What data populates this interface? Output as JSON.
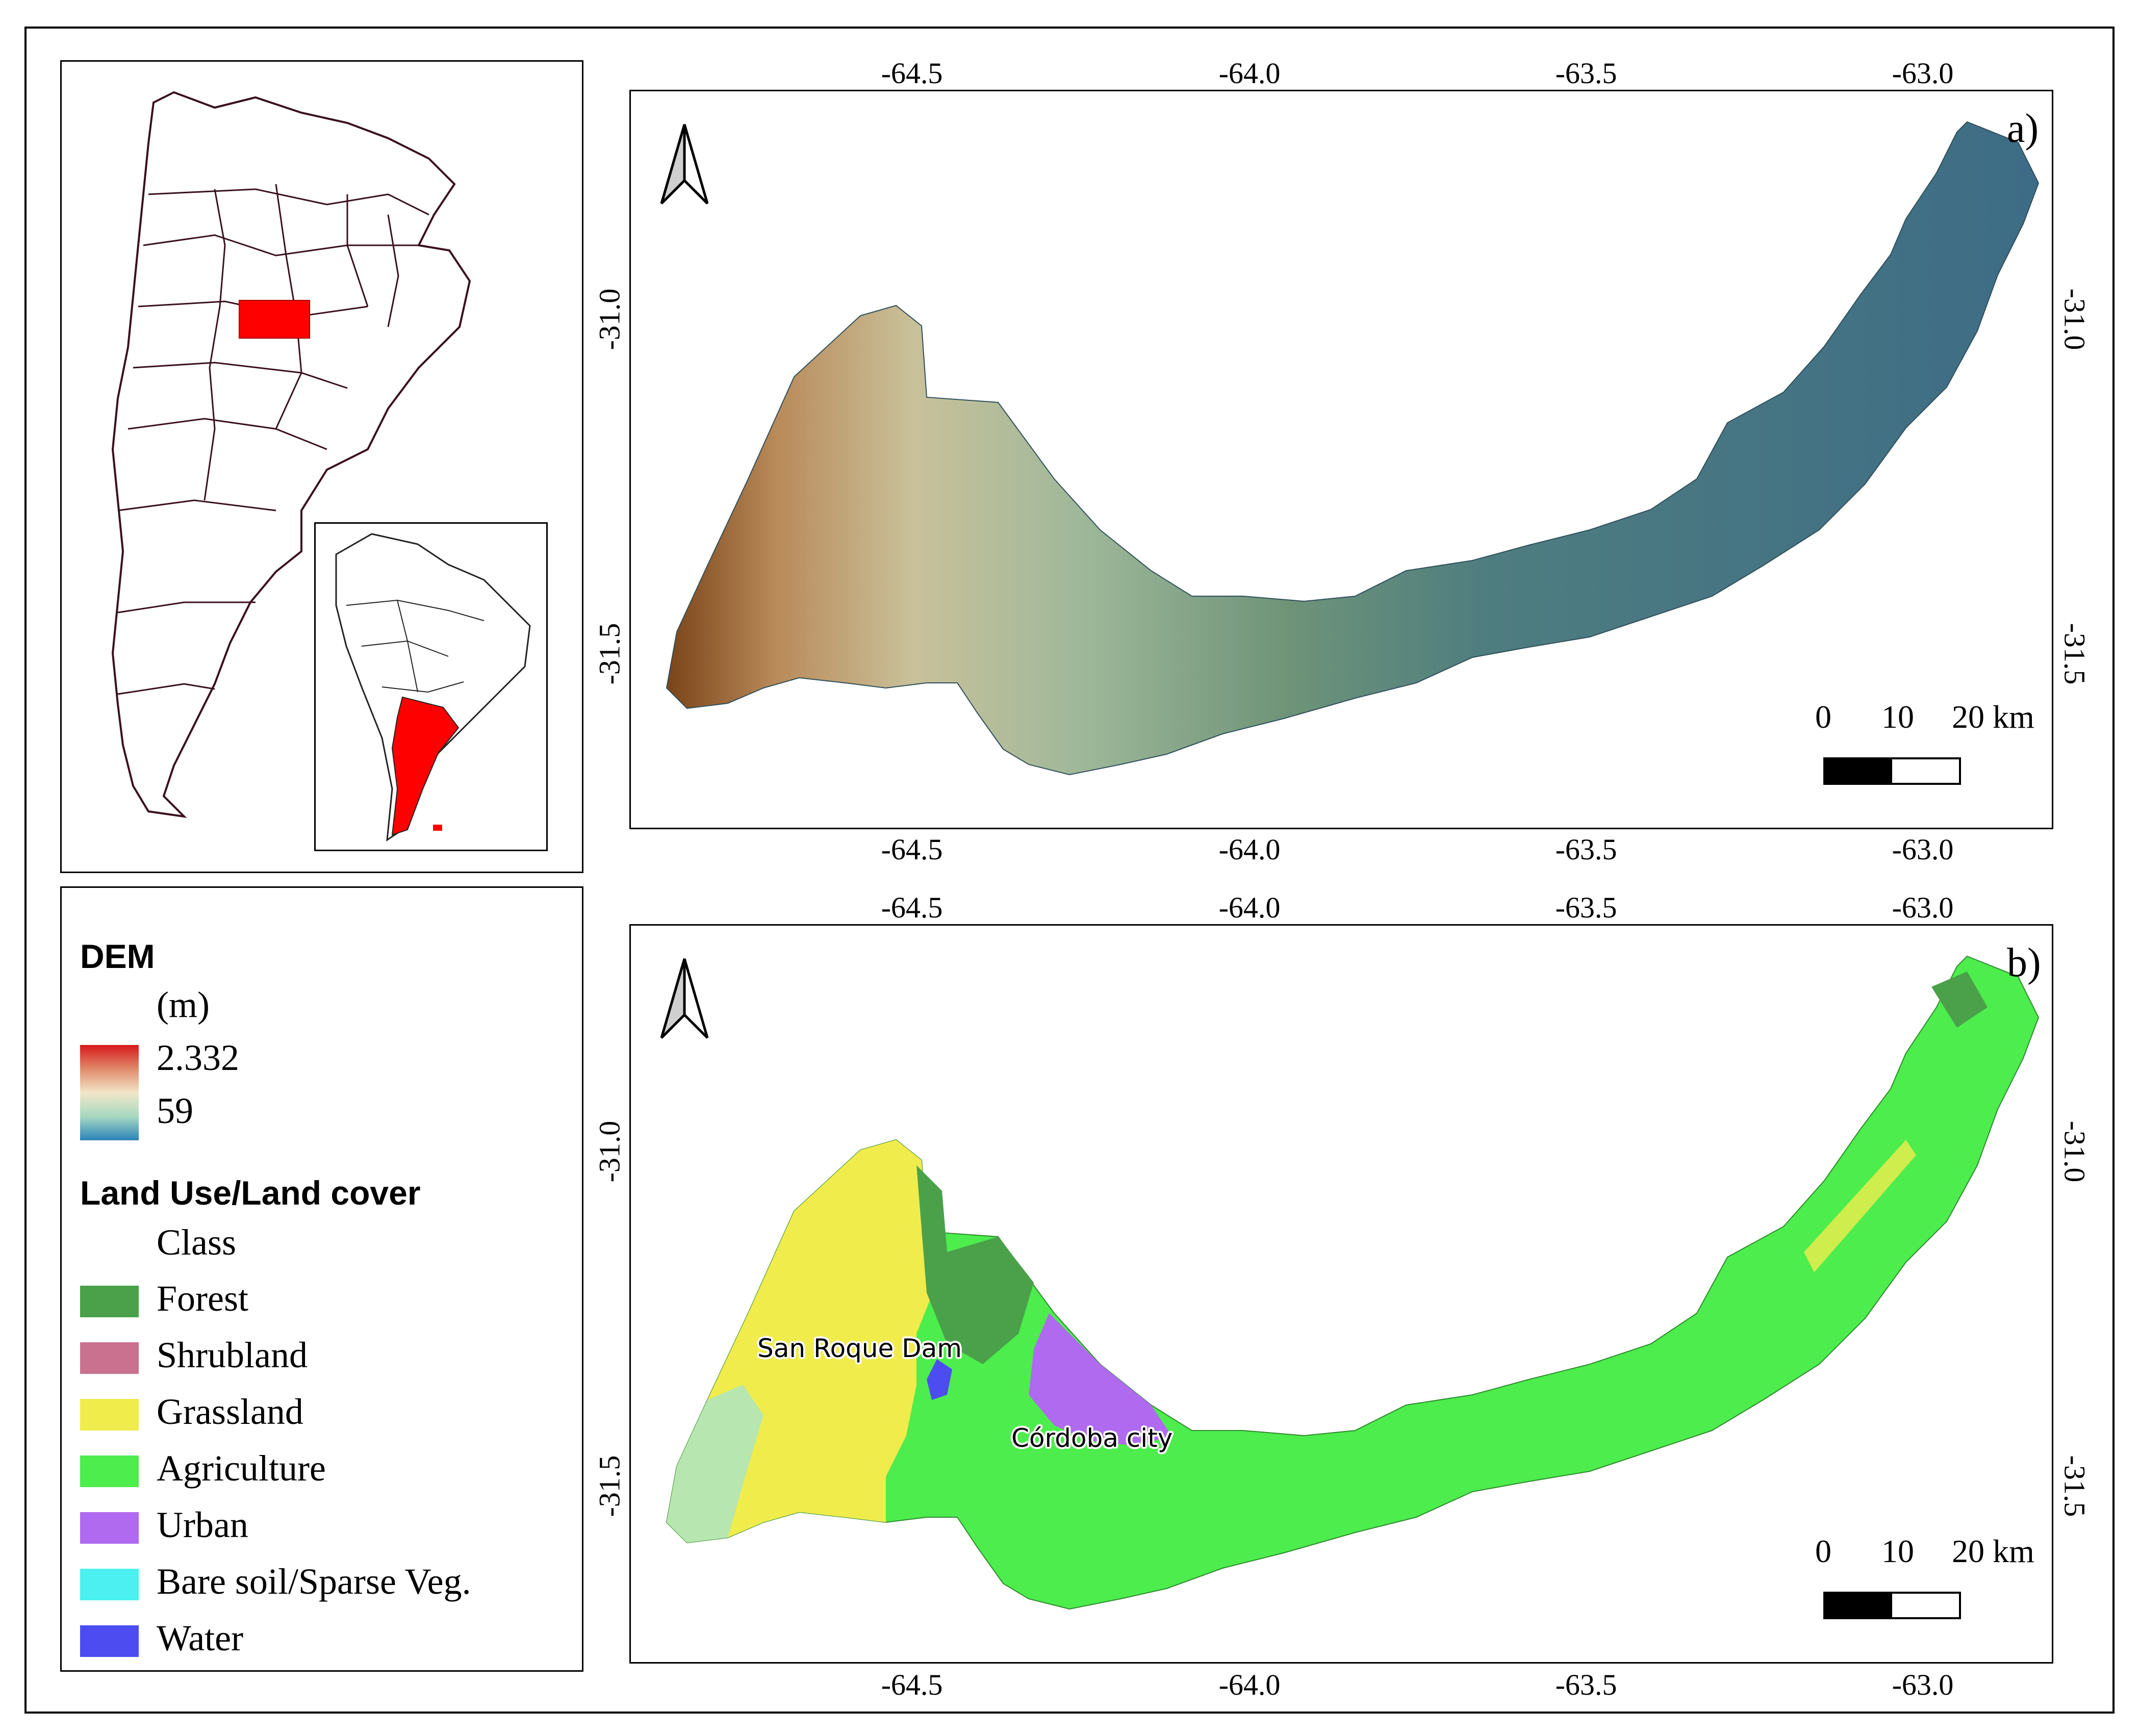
{
  "panels": {
    "a": {
      "label": "a)",
      "x_ticks": [
        "-64.5",
        "-64.0",
        "-63.5",
        "-63.0"
      ],
      "y_ticks": [
        "-31.0",
        "-31.5"
      ],
      "scale_bar": {
        "labels": [
          "0",
          "10",
          "20 km"
        ]
      }
    },
    "b": {
      "label": "b)",
      "x_ticks": [
        "-64.5",
        "-64.0",
        "-63.5",
        "-63.0"
      ],
      "y_ticks": [
        "-31.0",
        "-31.5"
      ],
      "scale_bar": {
        "labels": [
          "0",
          "10",
          "20 km"
        ]
      },
      "places": [
        "San Roque Dam",
        "Córdoba city"
      ]
    }
  },
  "legend": {
    "dem": {
      "title": "DEM",
      "unit": "(m)",
      "max_label": "2.332",
      "min_label": "59",
      "ramp_colors": [
        "#d7191c",
        "#e08a6a",
        "#f2e6c8",
        "#a6d9c0",
        "#2b83ba"
      ]
    },
    "lulc": {
      "title": "Land Use/Land cover",
      "subtitle": "Class",
      "classes": [
        {
          "name": "Forest",
          "color": "#4aa14a"
        },
        {
          "name": "Shrubland",
          "color": "#c9718e"
        },
        {
          "name": "Grassland",
          "color": "#f0ec4c"
        },
        {
          "name": "Agriculture",
          "color": "#4ced4c"
        },
        {
          "name": "Urban",
          "color": "#b06af0"
        },
        {
          "name": "Bare soil/Sparse Veg.",
          "color": "#4cf0f0"
        },
        {
          "name": "Water",
          "color": "#4c4cf0"
        }
      ]
    }
  },
  "locator": {
    "highlight_color": "#ff0000"
  }
}
